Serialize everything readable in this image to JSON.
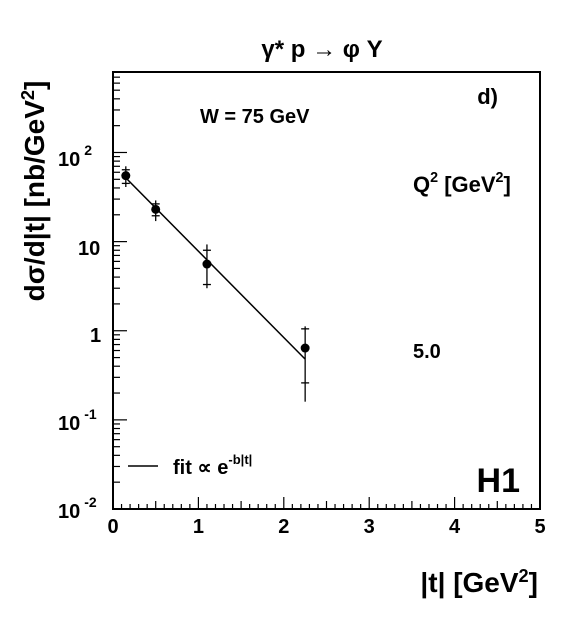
{
  "chart_data": {
    "type": "scatter",
    "title": "γ* p → φ Y",
    "panel_label": "d)",
    "xlabel": "|t| [GeV2]",
    "ylabel": "dσ/d|t| [nb/GeV2]",
    "x_scale": "linear",
    "y_scale": "log",
    "xlim": [
      0,
      5
    ],
    "ylim": [
      0.01,
      800
    ],
    "x_ticks": [
      0,
      1,
      2,
      3,
      4,
      5
    ],
    "y_tick_labels": {
      "t100": "10 2",
      "t10": "10",
      "t1": "1",
      "tm1": "10 -1",
      "tm2": "10 -2"
    },
    "grid": false,
    "annotations": {
      "w_label": "W = 75 GeV",
      "q2_header": "Q2 [GeV2]",
      "q2_value": "5.0",
      "experiment": "H1"
    },
    "legend": {
      "position": "bottom-left",
      "text": "fit ∝ e-b|t|"
    },
    "series": [
      {
        "points": [
          {
            "x": 0.15,
            "y": 55,
            "y_low_stat": 45,
            "y_high_stat": 64,
            "y_low_tot": 41,
            "y_high_tot": 70
          },
          {
            "x": 0.5,
            "y": 23,
            "y_low_stat": 19.5,
            "y_high_stat": 26.5,
            "y_low_tot": 17,
            "y_high_tot": 29
          },
          {
            "x": 1.1,
            "y": 5.6,
            "y_low_stat": 3.3,
            "y_high_stat": 8.0,
            "y_low_tot": 3.0,
            "y_high_tot": 9.3
          },
          {
            "x": 2.25,
            "y": 0.64,
            "y_low_stat": 0.26,
            "y_high_stat": 1.05,
            "y_low_tot": 0.16,
            "y_high_tot": 1.12
          }
        ]
      }
    ],
    "fit_line": {
      "x": [
        0.15,
        2.25
      ],
      "y": [
        52,
        0.48
      ]
    }
  }
}
